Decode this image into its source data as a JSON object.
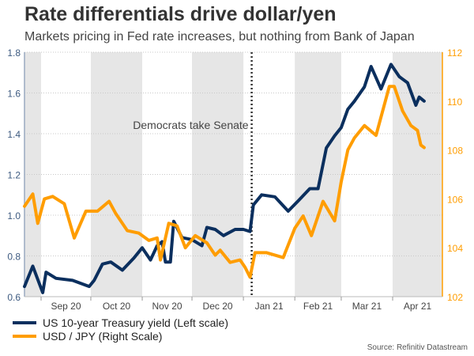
{
  "chart_data": {
    "type": "line",
    "title": "Rate differentials drive dollar/yen",
    "subtitle": "Markets pricing in Fed rate increases, but nothing from Bank of Japan",
    "xlim": [
      "2020-08-22",
      "2021-05-01"
    ],
    "x_ticks": [
      {
        "label": "Sep 20",
        "start": "2020-09-01",
        "end": "2020-10-01"
      },
      {
        "label": "Oct 20",
        "start": "2020-10-01",
        "end": "2020-11-01"
      },
      {
        "label": "Nov 20",
        "start": "2020-11-01",
        "end": "2020-12-01"
      },
      {
        "label": "Dec 20",
        "start": "2020-12-01",
        "end": "2021-01-01"
      },
      {
        "label": "Jan 21",
        "start": "2021-01-01",
        "end": "2021-02-01"
      },
      {
        "label": "Feb 21",
        "start": "2021-02-01",
        "end": "2021-03-01"
      },
      {
        "label": "Mar 21",
        "start": "2021-03-01",
        "end": "2021-04-01"
      },
      {
        "label": "Apr 21",
        "start": "2021-04-01",
        "end": "2021-05-01"
      }
    ],
    "shaded_months": [
      [
        "2020-08-22",
        "2020-09-01"
      ],
      [
        "2020-10-01",
        "2020-11-01"
      ],
      [
        "2020-12-01",
        "2021-01-01"
      ],
      [
        "2021-02-01",
        "2021-03-01"
      ],
      [
        "2021-04-01",
        "2021-05-01"
      ]
    ],
    "left_axis": {
      "ylim": [
        0.6,
        1.8
      ],
      "ticks": [
        "0.6",
        "0.8",
        "1.0",
        "1.2",
        "1.4",
        "1.6",
        "1.8"
      ]
    },
    "right_axis": {
      "ylim": [
        102,
        112
      ],
      "ticks": [
        "102",
        "104",
        "106",
        "108",
        "110",
        "112"
      ]
    },
    "grid": true,
    "annotation": {
      "text": "Democrats take Senate",
      "date": "2021-01-06"
    },
    "series": [
      {
        "name": "US 10-year Treasury yield (Left scale)",
        "axis": "left",
        "color": "#0b2f5e",
        "x": [
          "2020-08-22",
          "2020-08-27",
          "2020-09-02",
          "2020-09-04",
          "2020-09-10",
          "2020-09-20",
          "2020-09-30",
          "2020-10-03",
          "2020-10-08",
          "2020-10-13",
          "2020-10-20",
          "2020-10-27",
          "2020-11-01",
          "2020-11-06",
          "2020-11-10",
          "2020-11-13",
          "2020-11-15",
          "2020-11-18",
          "2020-11-20",
          "2020-11-25",
          "2020-12-01",
          "2020-12-07",
          "2020-12-10",
          "2020-12-15",
          "2020-12-20",
          "2020-12-27",
          "2021-01-01",
          "2021-01-05",
          "2021-01-07",
          "2021-01-12",
          "2021-01-20",
          "2021-01-28",
          "2021-02-03",
          "2021-02-10",
          "2021-02-15",
          "2021-02-20",
          "2021-02-25",
          "2021-03-01",
          "2021-03-05",
          "2021-03-09",
          "2021-03-15",
          "2021-03-19",
          "2021-03-25",
          "2021-03-31",
          "2021-04-05",
          "2021-04-10",
          "2021-04-15",
          "2021-04-17",
          "2021-04-20"
        ],
        "y": [
          0.65,
          0.75,
          0.62,
          0.72,
          0.69,
          0.68,
          0.65,
          0.68,
          0.76,
          0.77,
          0.73,
          0.79,
          0.84,
          0.78,
          0.85,
          0.87,
          0.77,
          0.77,
          0.97,
          0.89,
          0.88,
          0.85,
          0.94,
          0.93,
          0.9,
          0.93,
          0.93,
          0.92,
          1.05,
          1.1,
          1.09,
          1.02,
          1.07,
          1.13,
          1.13,
          1.33,
          1.39,
          1.43,
          1.52,
          1.56,
          1.63,
          1.73,
          1.62,
          1.74,
          1.68,
          1.65,
          1.54,
          1.58,
          1.56
        ]
      },
      {
        "name": "USD / JPY (Right Scale)",
        "axis": "right",
        "color": "#ff9d00",
        "x": [
          "2020-08-22",
          "2020-08-27",
          "2020-08-30",
          "2020-09-03",
          "2020-09-08",
          "2020-09-15",
          "2020-09-21",
          "2020-09-28",
          "2020-10-05",
          "2020-10-12",
          "2020-10-16",
          "2020-10-23",
          "2020-10-30",
          "2020-11-05",
          "2020-11-10",
          "2020-11-12",
          "2020-11-17",
          "2020-11-22",
          "2020-11-27",
          "2020-12-03",
          "2020-12-10",
          "2020-12-15",
          "2020-12-18",
          "2020-12-24",
          "2020-12-30",
          "2021-01-02",
          "2021-01-05",
          "2021-01-08",
          "2021-01-15",
          "2021-01-25",
          "2021-02-01",
          "2021-02-06",
          "2021-02-11",
          "2021-02-18",
          "2021-02-25",
          "2021-03-01",
          "2021-03-05",
          "2021-03-09",
          "2021-03-15",
          "2021-03-22",
          "2021-03-26",
          "2021-03-30",
          "2021-04-02",
          "2021-04-07",
          "2021-04-12",
          "2021-04-16",
          "2021-04-18",
          "2021-04-20"
        ],
        "y": [
          105.7,
          106.2,
          105.0,
          106.0,
          106.1,
          105.8,
          104.4,
          105.5,
          105.5,
          105.9,
          105.4,
          104.7,
          104.6,
          104.3,
          104.4,
          103.5,
          105.0,
          104.9,
          104.0,
          104.5,
          104.2,
          103.7,
          103.9,
          103.4,
          103.5,
          103.2,
          102.8,
          103.8,
          103.8,
          103.6,
          104.8,
          105.3,
          104.5,
          105.9,
          105.1,
          106.7,
          108.0,
          108.5,
          109.0,
          108.6,
          109.6,
          110.6,
          110.6,
          109.6,
          109.0,
          108.8,
          108.2,
          108.1
        ]
      }
    ],
    "source": "Source: Refinitiv Datastream"
  }
}
